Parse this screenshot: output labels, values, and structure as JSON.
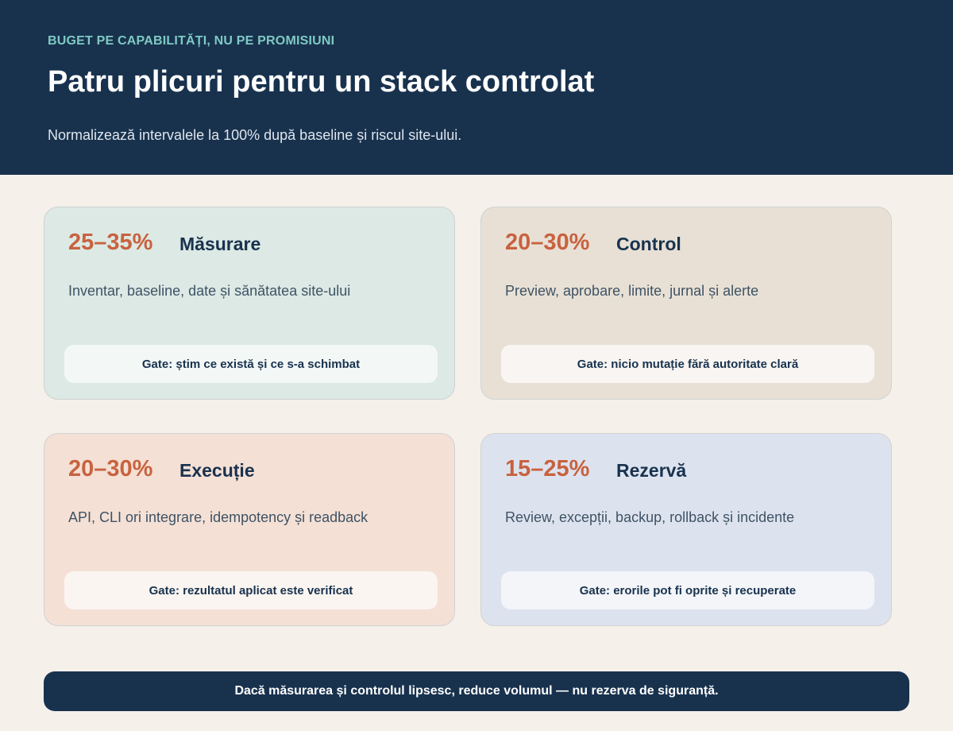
{
  "header": {
    "eyebrow": "BUGET PE CAPABILITĂȚI, NU PE PROMISIUNI",
    "title": "Patru plicuri pentru un stack controlat",
    "subtitle": "Normalizează intervalele la 100% după baseline și riscul site-ului."
  },
  "cards": [
    {
      "range": "25–35%",
      "name": "Măsurare",
      "description": "Inventar, baseline, date și sănătatea site-ului",
      "gate": "Gate: știm ce există și ce s-a schimbat"
    },
    {
      "range": "20–30%",
      "name": "Control",
      "description": "Preview, aprobare, limite, jurnal și alerte",
      "gate": "Gate: nicio mutație fără autoritate clară"
    },
    {
      "range": "20–30%",
      "name": "Execuție",
      "description": "API, CLI ori integrare, idempotency și readback",
      "gate": "Gate: rezultatul aplicat este verificat"
    },
    {
      "range": "15–25%",
      "name": "Rezervă",
      "description": "Review, excepții, backup, rollback și incidente",
      "gate": "Gate: erorile pot fi oprite și recuperate"
    }
  ],
  "footer": {
    "note": "Dacă măsurarea și controlul lipsesc, reduce volumul — nu rezerva de siguranță."
  },
  "colors": {
    "header_bg": "#18324e",
    "eyebrow": "#7fc9c3",
    "accent": "#c8623f",
    "page_bg": "#f5f0ea",
    "card_teal": "#dce9e4",
    "card_tan": "#e8e0d5",
    "card_peach": "#f4e0d5",
    "card_blue": "#dde3ee"
  }
}
